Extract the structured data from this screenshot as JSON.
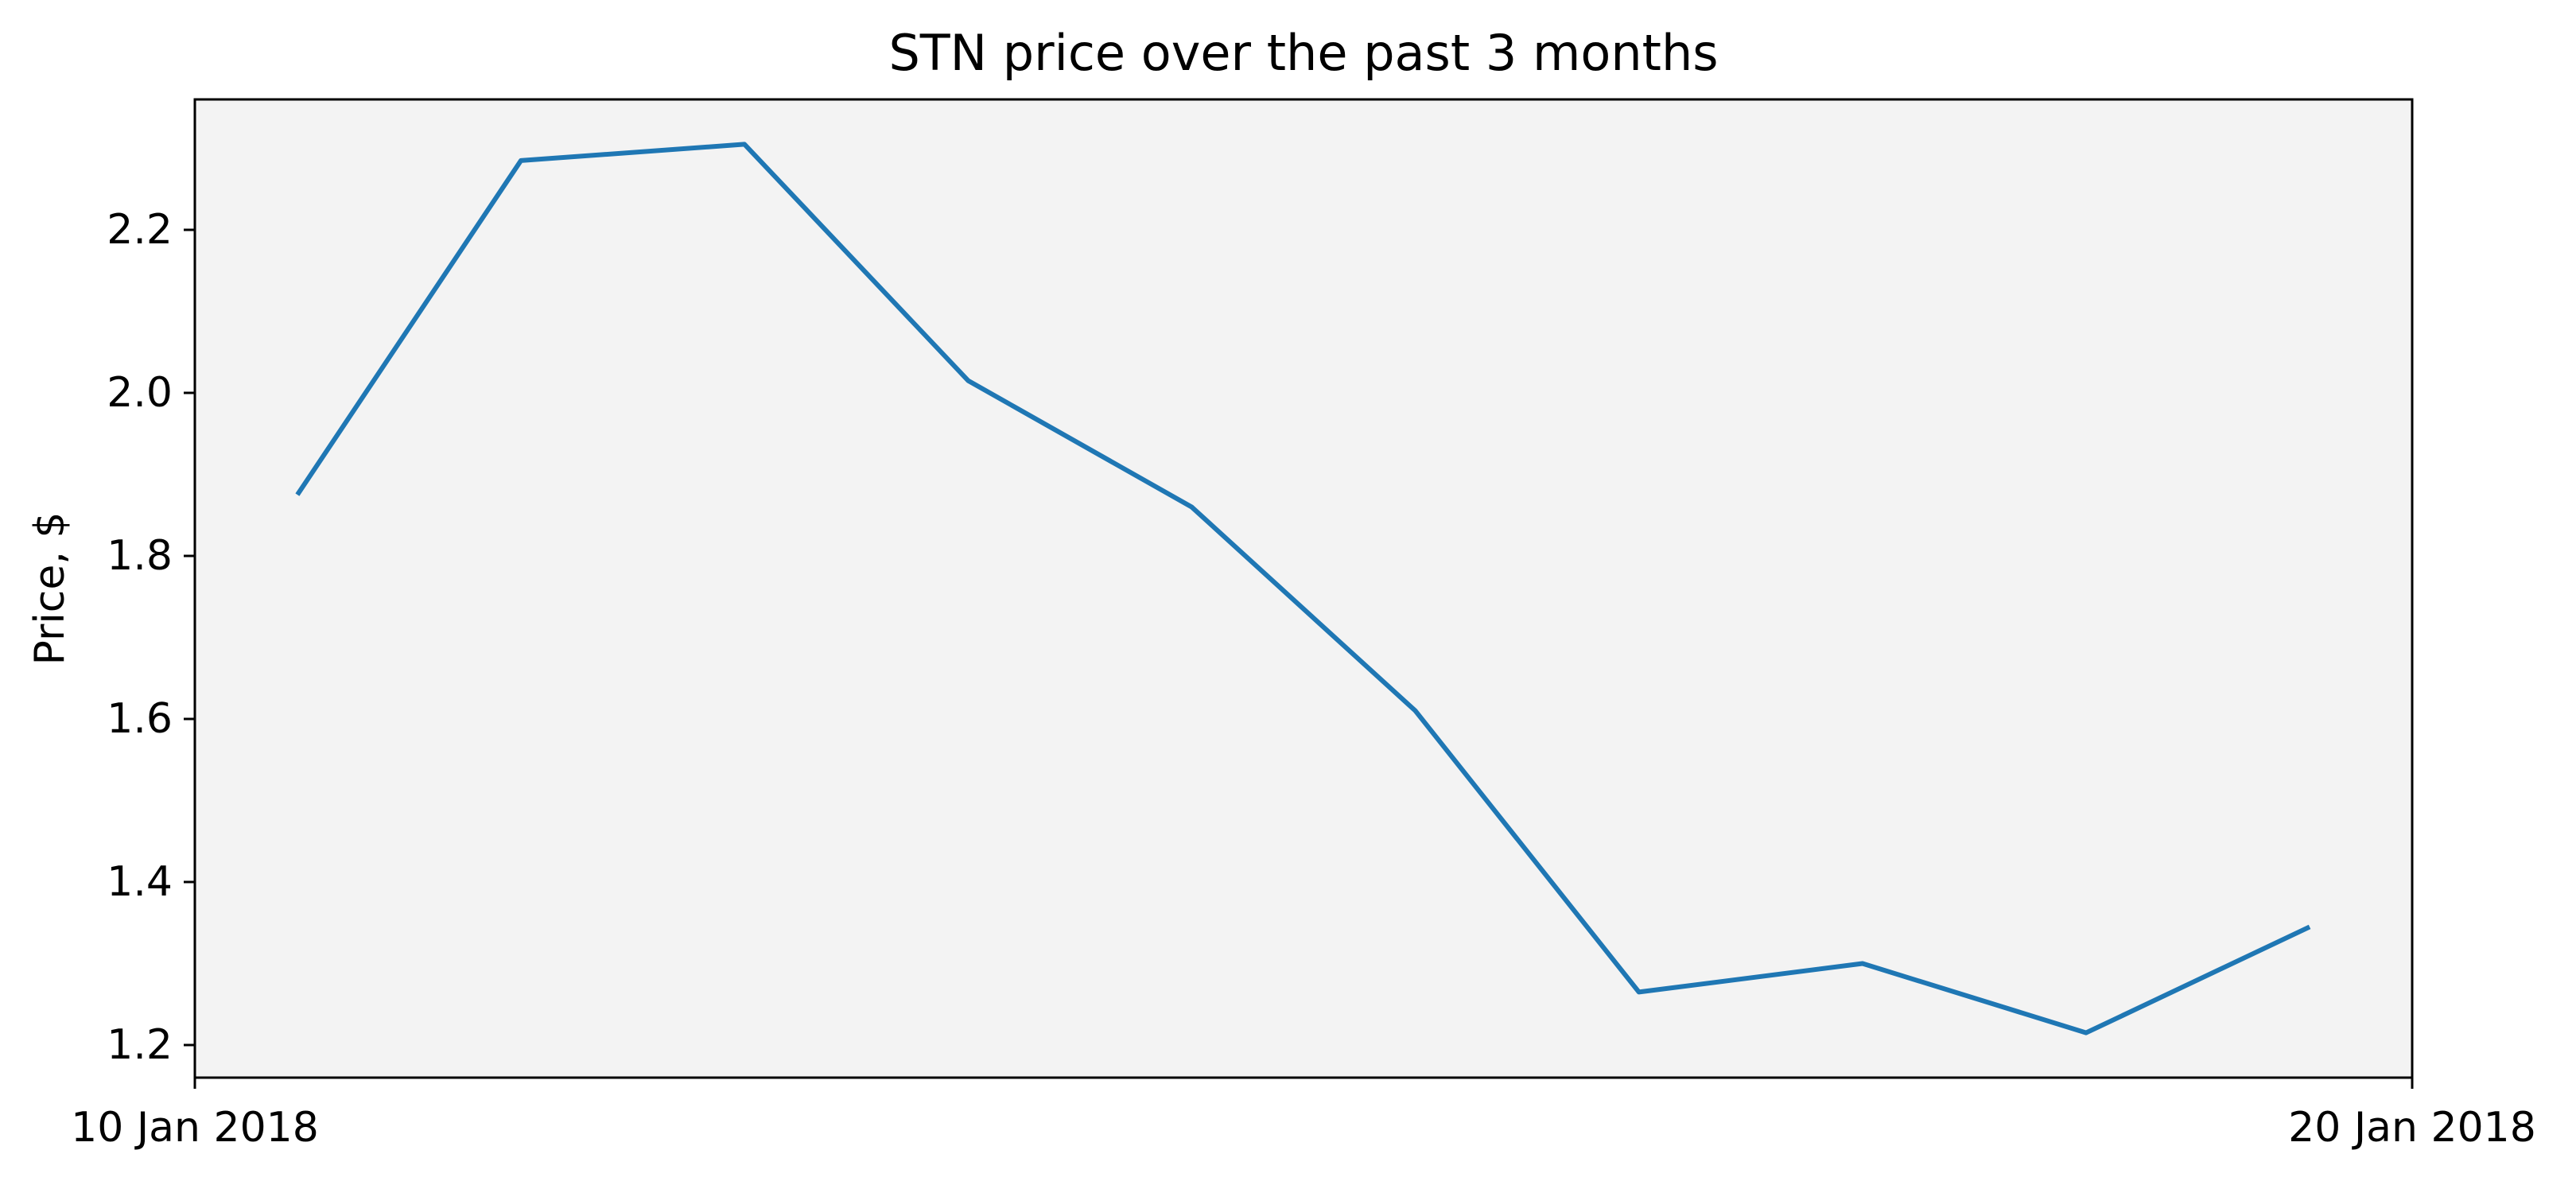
{
  "chart_data": {
    "type": "line",
    "title": "STN price over the past 3 months",
    "xlabel": "",
    "ylabel": "Price, $",
    "x": [
      "2018-01-10",
      "2018-01-11",
      "2018-01-12",
      "2018-01-13",
      "2018-01-14",
      "2018-01-15",
      "2018-01-16",
      "2018-01-17",
      "2018-01-18",
      "2018-01-19"
    ],
    "series": [
      {
        "name": "",
        "values": [
          1.875,
          2.285,
          2.305,
          2.015,
          1.86,
          1.61,
          1.265,
          1.3,
          1.215,
          1.345
        ]
      }
    ],
    "x_range": [
      "2018-01-09 13:00",
      "2018-01-19 11:00"
    ],
    "x_tick_labels": [
      "10 Jan 2018",
      "20 Jan 2018"
    ],
    "ylim": [
      1.16,
      2.36
    ],
    "y_ticks": [
      1.2,
      1.4,
      1.6,
      1.8,
      2.0,
      2.2
    ],
    "y_tick_labels": [
      "1.2",
      "1.4",
      "1.6",
      "1.8",
      "2.0",
      "2.2"
    ],
    "grid": false,
    "plot_background": "#f3f3f3",
    "line_color": "#1f77b4"
  }
}
